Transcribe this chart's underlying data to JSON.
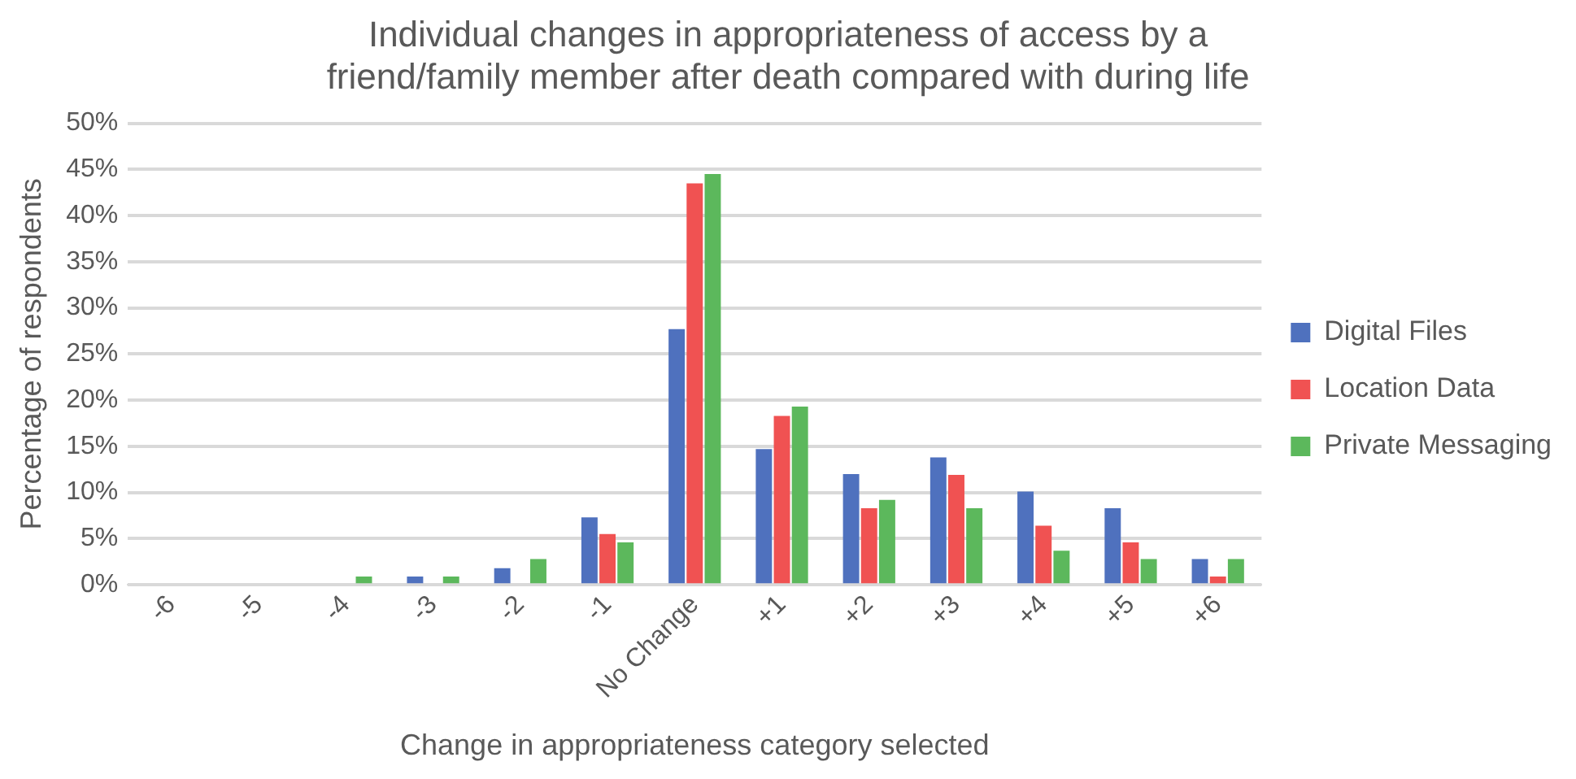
{
  "chart_data": {
    "type": "bar",
    "title": "Individual changes in appropriateness of access by a friend/family member after death compared with during life",
    "xlabel": "Change in appropriateness category selected",
    "ylabel": "Percentage of respondents",
    "categories": [
      "-6",
      "-5",
      "-4",
      "-3",
      "-2",
      "-1",
      "No Change",
      "+1",
      "+2",
      "+3",
      "+4",
      "+5",
      "+6"
    ],
    "series": [
      {
        "name": "Digital Files",
        "color": "#4f71be",
        "values": [
          0,
          0,
          0,
          0.9,
          1.8,
          7.3,
          27.7,
          14.7,
          12,
          13.8,
          10.1,
          8.3,
          2.8
        ]
      },
      {
        "name": "Location Data",
        "color": "#f05252",
        "values": [
          0,
          0,
          0,
          0,
          0,
          5.5,
          43.5,
          18.3,
          8.3,
          11.9,
          6.4,
          4.6,
          0.9
        ]
      },
      {
        "name": "Private Messaging",
        "color": "#5cb85c",
        "values": [
          0,
          0,
          0.9,
          0.9,
          2.8,
          4.6,
          44.5,
          19.3,
          9.2,
          8.3,
          3.7,
          2.8,
          2.8
        ]
      }
    ],
    "ylim": [
      0,
      50
    ],
    "yticks": [
      {
        "value": 0,
        "label": "0%"
      },
      {
        "value": 5,
        "label": "5%"
      },
      {
        "value": 10,
        "label": "10%"
      },
      {
        "value": 15,
        "label": "15%"
      },
      {
        "value": 20,
        "label": "20%"
      },
      {
        "value": 25,
        "label": "25%"
      },
      {
        "value": 30,
        "label": "30%"
      },
      {
        "value": 35,
        "label": "35%"
      },
      {
        "value": 40,
        "label": "40%"
      },
      {
        "value": 45,
        "label": "45%"
      },
      {
        "value": 50,
        "label": "50%"
      }
    ],
    "grid": "y",
    "legend": "right"
  }
}
